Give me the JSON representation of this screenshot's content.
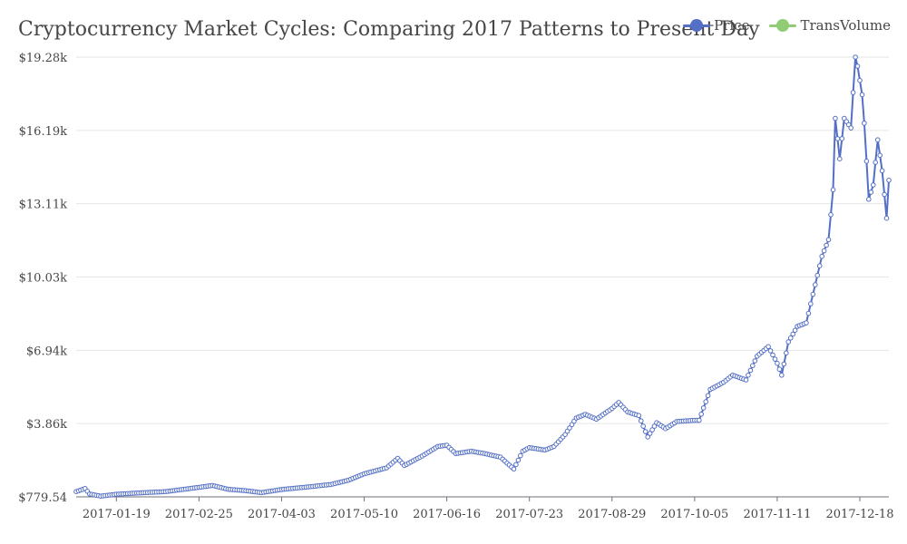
{
  "chart_data": {
    "type": "line",
    "title": "Cryptocurrency Market Cycles: Comparing 2017 Patterns to Present Day",
    "xlabel": "",
    "ylabel": "",
    "x_start": "2017-01-01",
    "x_end": "2017-12-31",
    "ylim": [
      779.54,
      19280
    ],
    "y_ticks": [
      "$779.54",
      "$3.86k",
      "$6.94k",
      "$10.03k",
      "$13.11k",
      "$16.19k",
      "$19.28k"
    ],
    "x_ticks": [
      "2017-01-19",
      "2017-02-25",
      "2017-04-03",
      "2017-05-10",
      "2017-06-16",
      "2017-07-23",
      "2017-08-29",
      "2017-10-05",
      "2017-11-11",
      "2017-12-18"
    ],
    "legend": {
      "position": "top-right",
      "entries": [
        {
          "name": "Price",
          "color": "#5470c6"
        },
        {
          "name": "TransVolume",
          "color": "#91cc75"
        }
      ]
    },
    "grid": true,
    "series": [
      {
        "name": "Price",
        "color": "#5470c6",
        "points": [
          [
            "2017-01-01",
            1000
          ],
          [
            "2017-01-05",
            1130
          ],
          [
            "2017-01-07",
            900
          ],
          [
            "2017-01-12",
            810
          ],
          [
            "2017-01-19",
            890
          ],
          [
            "2017-02-01",
            960
          ],
          [
            "2017-02-10",
            1000
          ],
          [
            "2017-02-25",
            1180
          ],
          [
            "2017-03-03",
            1260
          ],
          [
            "2017-03-10",
            1100
          ],
          [
            "2017-03-18",
            1040
          ],
          [
            "2017-03-25",
            960
          ],
          [
            "2017-04-03",
            1090
          ],
          [
            "2017-04-15",
            1200
          ],
          [
            "2017-04-25",
            1300
          ],
          [
            "2017-05-03",
            1480
          ],
          [
            "2017-05-10",
            1750
          ],
          [
            "2017-05-20",
            2000
          ],
          [
            "2017-05-25",
            2400
          ],
          [
            "2017-05-28",
            2100
          ],
          [
            "2017-06-05",
            2500
          ],
          [
            "2017-06-12",
            2900
          ],
          [
            "2017-06-16",
            2950
          ],
          [
            "2017-06-20",
            2600
          ],
          [
            "2017-06-27",
            2700
          ],
          [
            "2017-07-03",
            2600
          ],
          [
            "2017-07-10",
            2450
          ],
          [
            "2017-07-16",
            1950
          ],
          [
            "2017-07-20",
            2700
          ],
          [
            "2017-07-23",
            2850
          ],
          [
            "2017-07-30",
            2750
          ],
          [
            "2017-08-03",
            2900
          ],
          [
            "2017-08-08",
            3400
          ],
          [
            "2017-08-13",
            4100
          ],
          [
            "2017-08-17",
            4250
          ],
          [
            "2017-08-22",
            4050
          ],
          [
            "2017-08-29",
            4500
          ],
          [
            "2017-09-01",
            4750
          ],
          [
            "2017-09-05",
            4350
          ],
          [
            "2017-09-10",
            4200
          ],
          [
            "2017-09-14",
            3300
          ],
          [
            "2017-09-18",
            3900
          ],
          [
            "2017-09-22",
            3650
          ],
          [
            "2017-09-27",
            3950
          ],
          [
            "2017-10-05",
            4000
          ],
          [
            "2017-10-07",
            4000
          ],
          [
            "2017-10-12",
            5300
          ],
          [
            "2017-10-18",
            5600
          ],
          [
            "2017-10-22",
            5900
          ],
          [
            "2017-10-28",
            5700
          ],
          [
            "2017-11-02",
            6700
          ],
          [
            "2017-11-07",
            7100
          ],
          [
            "2017-11-11",
            6400
          ],
          [
            "2017-11-13",
            5900
          ],
          [
            "2017-11-16",
            7300
          ],
          [
            "2017-11-20",
            7950
          ],
          [
            "2017-11-24",
            8100
          ],
          [
            "2017-11-28",
            9700
          ],
          [
            "2017-12-01",
            10900
          ],
          [
            "2017-12-04",
            11600
          ],
          [
            "2017-12-06",
            13700
          ],
          [
            "2017-12-07",
            16700
          ],
          [
            "2017-12-09",
            15000
          ],
          [
            "2017-12-11",
            16700
          ],
          [
            "2017-12-14",
            16300
          ],
          [
            "2017-12-16",
            19280
          ],
          [
            "2017-12-17",
            18900
          ],
          [
            "2017-12-19",
            17700
          ],
          [
            "2017-12-20",
            16500
          ],
          [
            "2017-12-22",
            13300
          ],
          [
            "2017-12-24",
            13900
          ],
          [
            "2017-12-26",
            15800
          ],
          [
            "2017-12-28",
            14500
          ],
          [
            "2017-12-30",
            12500
          ],
          [
            "2017-12-31",
            14100
          ]
        ]
      }
    ]
  }
}
